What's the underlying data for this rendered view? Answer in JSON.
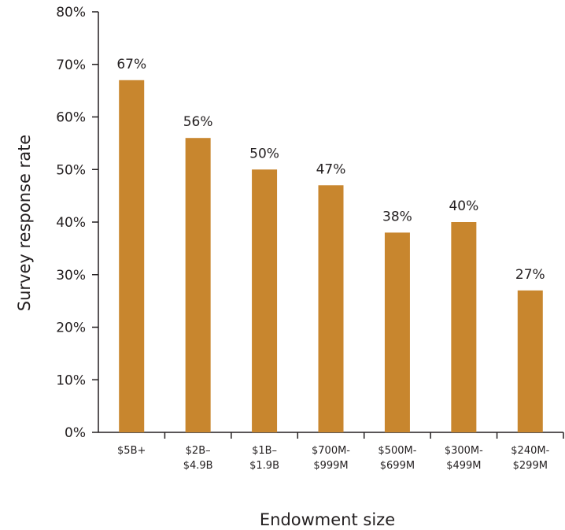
{
  "chart_data": {
    "type": "bar",
    "title": "",
    "xlabel": "Endowment size",
    "ylabel": "Survey response rate",
    "ylim": [
      0,
      80
    ],
    "yticks": [
      "0%",
      "10%",
      "20%",
      "30%",
      "40%",
      "50%",
      "60%",
      "70%",
      "80%"
    ],
    "categories": [
      [
        "$5B+"
      ],
      [
        "$2B–",
        "$4.9B"
      ],
      [
        "$1B–",
        "$1.9B"
      ],
      [
        "$700M-",
        "$999M"
      ],
      [
        "$500M-",
        "$699M"
      ],
      [
        "$300M-",
        "$499M"
      ],
      [
        "$240M-",
        "$299M"
      ]
    ],
    "values": [
      67,
      56,
      50,
      47,
      38,
      40,
      27
    ],
    "data_labels": [
      "67%",
      "56%",
      "50%",
      "47%",
      "38%",
      "40%",
      "27%"
    ],
    "grid": false,
    "legend": "none",
    "bar_color": "#c8862e",
    "axis_color": "#231f20"
  }
}
